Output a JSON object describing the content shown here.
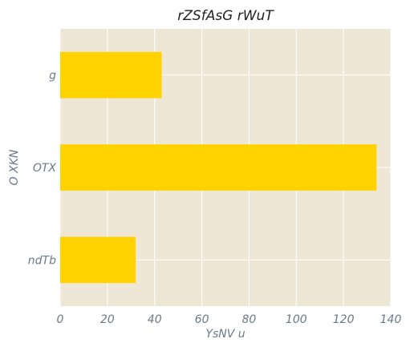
{
  "chart_data": {
    "type": "bar",
    "orientation": "horizontal",
    "title": "rZSfAsG rWuT",
    "xlabel": "YsNV u",
    "ylabel": "O XKN",
    "categories": [
      "g",
      "OTX",
      "ndTb"
    ],
    "values": [
      43,
      134,
      32
    ],
    "xlim": [
      0,
      140
    ],
    "xticks": [
      0,
      20,
      40,
      60,
      80,
      100,
      120,
      140
    ],
    "grid": true,
    "colors": {
      "bar": "#ffd200",
      "plot_background": "#efe7d6",
      "grid": "#ffffff"
    }
  }
}
